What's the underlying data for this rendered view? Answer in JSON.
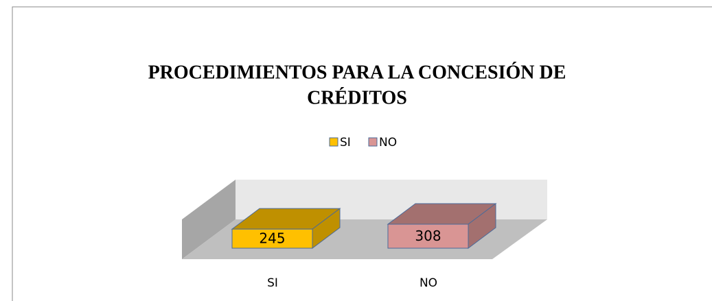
{
  "chart_data": {
    "type": "bar3d",
    "title": "PROCEDIMIENTOS PARA LA CONCESIÓN DE CRÉDITOS",
    "categories": [
      "SI",
      "NO"
    ],
    "values": [
      245,
      308
    ],
    "colors": [
      "#ffc000",
      "#d99594"
    ],
    "legend": "top"
  }
}
